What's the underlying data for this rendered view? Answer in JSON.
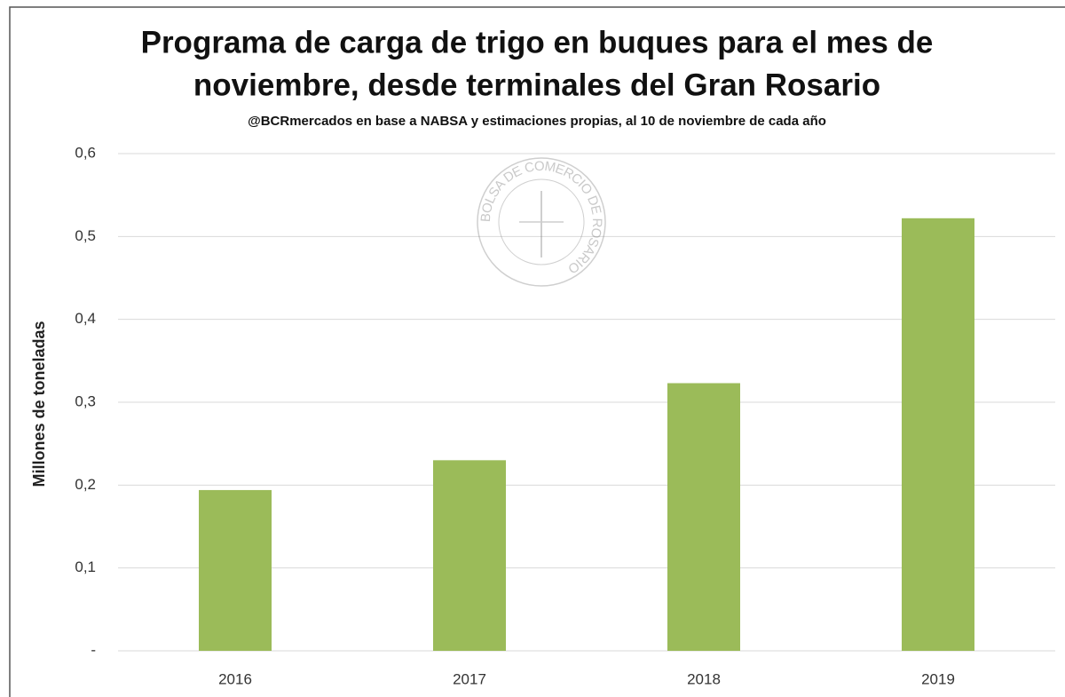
{
  "chart_data": {
    "type": "bar",
    "title": [
      "Programa de carga de trigo en buques para el mes de",
      "noviembre, desde terminales del Gran Rosario"
    ],
    "subtitle": "@BCRmercados en base a NABSA y estimaciones propias, al 10 de noviembre de cada año",
    "y_label": "Millones de toneladas",
    "watermark": "BOLSA DE COMERCIO DE ROSARIO",
    "categories": [
      "2016",
      "2017",
      "2018",
      "2019"
    ],
    "values": [
      0.194,
      0.23,
      0.323,
      0.522
    ],
    "color": "#9bbb59",
    "ylim": [
      0,
      0.6
    ],
    "yticks": [
      {
        "value": 0,
        "label": "-"
      },
      {
        "value": 0.1,
        "label": "0,1"
      },
      {
        "value": 0.2,
        "label": "0,2"
      },
      {
        "value": 0.3,
        "label": "0,3"
      },
      {
        "value": 0.4,
        "label": "0,4"
      },
      {
        "value": 0.5,
        "label": "0,5"
      },
      {
        "value": 0.6,
        "label": "0,6"
      }
    ],
    "grid": true
  }
}
